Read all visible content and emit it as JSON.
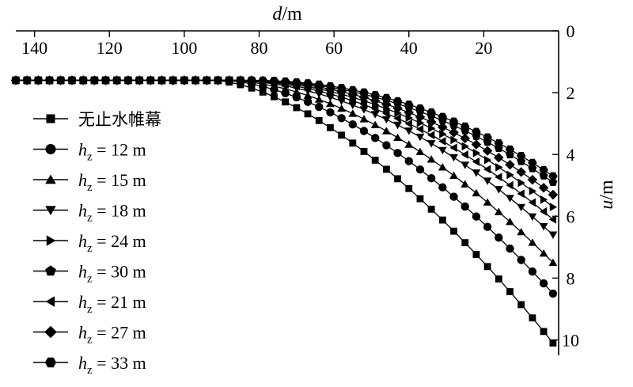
{
  "chart_data": {
    "type": "line",
    "xlabel": "d/m",
    "ylabel": "u/m",
    "xlim": [
      145,
      0
    ],
    "ylim": [
      0,
      10.5
    ],
    "x_axis_position": "top",
    "y_axis_position": "right",
    "y_inverted": true,
    "x_ticks": [
      "140",
      "120",
      "100",
      "80",
      "60",
      "40",
      "20"
    ],
    "y_ticks": [
      "0",
      "2",
      "4",
      "6",
      "8",
      "10"
    ],
    "x_tick_values": [
      140,
      120,
      100,
      80,
      60,
      40,
      20
    ],
    "y_tick_values": [
      0,
      2,
      4,
      6,
      8,
      10
    ],
    "grid": false,
    "legend_position": "left",
    "series": [
      {
        "name": "无止水帷幕",
        "marker": "square",
        "s_start": 1.6,
        "s_end": 10.1,
        "onset": 92,
        "exponent": 1.6
      },
      {
        "name": "hz = 12 m",
        "h": "h",
        "sub": "z",
        "rest": " = 12 m",
        "marker": "circle",
        "s_start": 1.6,
        "s_end": 8.5,
        "onset": 90,
        "exponent": 1.7
      },
      {
        "name": "hz = 15 m",
        "h": "h",
        "sub": "z",
        "rest": " = 15 m",
        "marker": "triangle-up",
        "s_start": 1.6,
        "s_end": 7.5,
        "onset": 89,
        "exponent": 1.8
      },
      {
        "name": "hz = 18 m",
        "h": "h",
        "sub": "z",
        "rest": " = 18 m",
        "marker": "triangle-down",
        "s_start": 1.6,
        "s_end": 6.6,
        "onset": 88,
        "exponent": 1.9
      },
      {
        "name": "hz = 24 m",
        "h": "h",
        "sub": "z",
        "rest": " = 24 m",
        "marker": "triangle-right",
        "s_start": 1.6,
        "s_end": 5.7,
        "onset": 86,
        "exponent": 2.0
      },
      {
        "name": "hz = 30 m",
        "h": "h",
        "sub": "z",
        "rest": " = 30 m",
        "marker": "pentagon",
        "s_start": 1.6,
        "s_end": 4.9,
        "onset": 84,
        "exponent": 2.1
      },
      {
        "name": "hz = 21 m",
        "h": "h",
        "sub": "z",
        "rest": " = 21 m",
        "marker": "triangle-left",
        "s_start": 1.6,
        "s_end": 6.1,
        "onset": 87,
        "exponent": 1.95
      },
      {
        "name": "hz = 27 m",
        "h": "h",
        "sub": "z",
        "rest": " = 27 m",
        "marker": "diamond",
        "s_start": 1.6,
        "s_end": 5.3,
        "onset": 85,
        "exponent": 2.05
      },
      {
        "name": "hz = 33 m",
        "h": "h",
        "sub": "z",
        "rest": " = 33 m",
        "marker": "hexagon",
        "s_start": 1.6,
        "s_end": 4.7,
        "onset": 83,
        "exponent": 2.15
      }
    ],
    "x_points": [
      145,
      142,
      139,
      136,
      133,
      130,
      127,
      124,
      121,
      118,
      115,
      112,
      109,
      106,
      103,
      100,
      97,
      94,
      91,
      88,
      85,
      82,
      79,
      76,
      73,
      70,
      67,
      64,
      61,
      58,
      55,
      52,
      49,
      46,
      43,
      40,
      37,
      34,
      31,
      28,
      25,
      22,
      19,
      16,
      13,
      10,
      7,
      4,
      1.5
    ]
  }
}
